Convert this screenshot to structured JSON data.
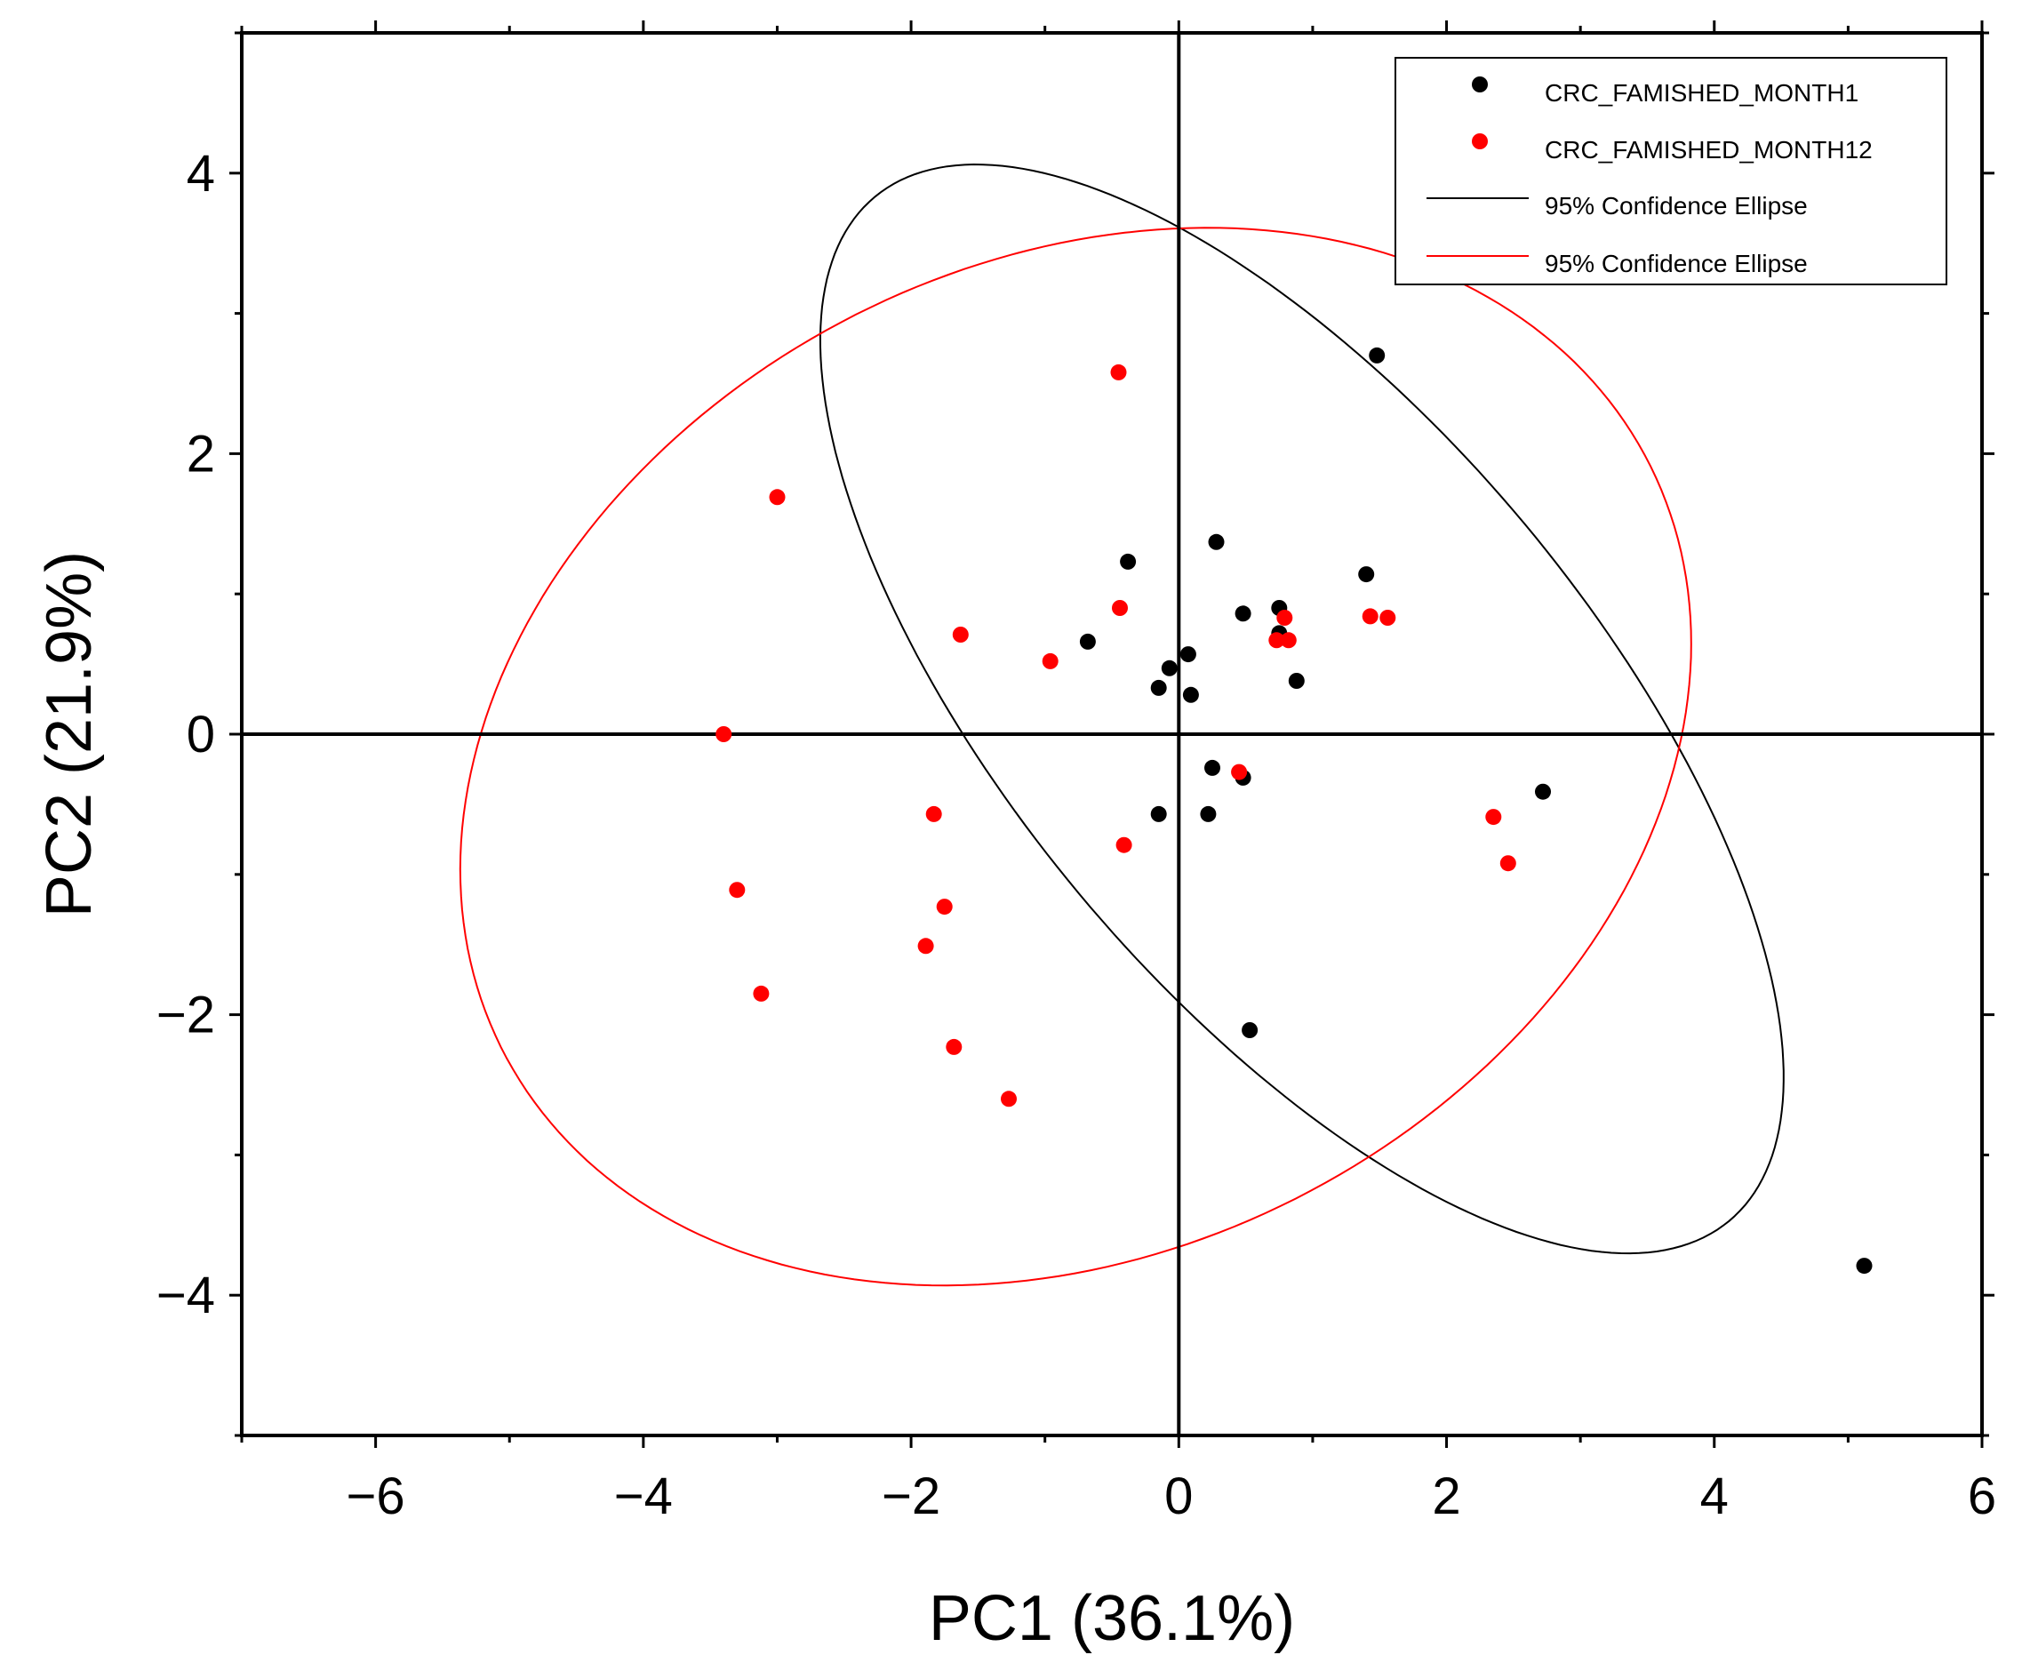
{
  "chart_data": {
    "type": "scatter",
    "xlabel": "PC1 (36.1%)",
    "ylabel": "PC2 (21.9%)",
    "xlim": [
      -7,
      6
    ],
    "ylim": [
      -5,
      5
    ],
    "xticks": [
      -6,
      -4,
      -2,
      0,
      2,
      4,
      6
    ],
    "yticks": [
      -4,
      -2,
      0,
      2,
      4
    ],
    "x_tick_labels": [
      "−6",
      "−4",
      "−2",
      "0",
      "2",
      "4",
      "6"
    ],
    "y_tick_labels": [
      "−4",
      "−2",
      "0",
      "2",
      "4"
    ],
    "reference_lines": {
      "x": 0,
      "y": 0
    },
    "legend_position": "top-right",
    "series": [
      {
        "name": "CRC_FAMISHED_MONTH1",
        "color": "#000000",
        "points": [
          [
            1.48,
            2.7
          ],
          [
            0.28,
            1.37
          ],
          [
            -0.38,
            1.23
          ],
          [
            1.4,
            1.14
          ],
          [
            0.48,
            0.86
          ],
          [
            0.75,
            0.9
          ],
          [
            0.75,
            0.72
          ],
          [
            -0.68,
            0.66
          ],
          [
            0.07,
            0.57
          ],
          [
            -0.07,
            0.47
          ],
          [
            0.88,
            0.38
          ],
          [
            -0.15,
            0.33
          ],
          [
            0.09,
            0.28
          ],
          [
            0.25,
            -0.24
          ],
          [
            0.48,
            -0.31
          ],
          [
            2.72,
            -0.41
          ],
          [
            -0.15,
            -0.57
          ],
          [
            0.22,
            -0.57
          ],
          [
            0.53,
            -2.11
          ],
          [
            5.12,
            -3.79
          ]
        ]
      },
      {
        "name": "CRC_FAMISHED_MONTH12",
        "color": "#ff0000",
        "points": [
          [
            -0.45,
            2.58
          ],
          [
            -3.0,
            1.69
          ],
          [
            -0.44,
            0.9
          ],
          [
            -1.63,
            0.71
          ],
          [
            -0.96,
            0.52
          ],
          [
            0.79,
            0.83
          ],
          [
            0.73,
            0.67
          ],
          [
            0.82,
            0.67
          ],
          [
            1.43,
            0.84
          ],
          [
            1.56,
            0.83
          ],
          [
            -3.4,
            0.0
          ],
          [
            0.45,
            -0.27
          ],
          [
            -1.83,
            -0.57
          ],
          [
            -0.41,
            -0.79
          ],
          [
            2.35,
            -0.59
          ],
          [
            2.46,
            -0.92
          ],
          [
            -3.3,
            -1.11
          ],
          [
            -1.75,
            -1.23
          ],
          [
            -1.89,
            -1.51
          ],
          [
            -3.12,
            -1.85
          ],
          [
            -1.68,
            -2.23
          ],
          [
            -1.27,
            -2.6
          ]
        ]
      }
    ],
    "ellipses": [
      {
        "name": "95% Confidence Ellipse",
        "color": "#000000",
        "center": [
          0.92,
          0.18
        ],
        "semi_major": 4.85,
        "semi_minor": 2.12,
        "angle_deg": -48.2
      },
      {
        "name": "95% Confidence Ellipse",
        "color": "#ff0000",
        "center": [
          -0.77,
          -0.16
        ],
        "semi_major": 4.77,
        "semi_minor": 3.55,
        "angle_deg": 23.5
      }
    ]
  }
}
